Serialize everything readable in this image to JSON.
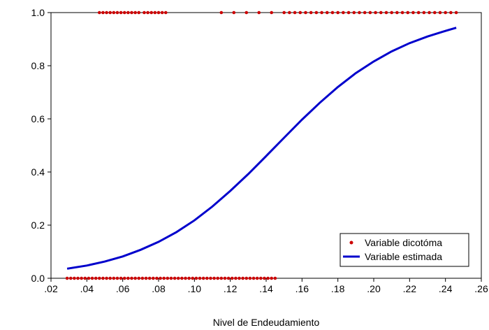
{
  "chart_data": {
    "type": "scatter",
    "title": "",
    "xlabel": "Nivel de Endeudamiento",
    "ylabel": "",
    "xlim": [
      0.02,
      0.26
    ],
    "ylim": [
      0.0,
      1.0
    ],
    "x_ticks": [
      0.02,
      0.04,
      0.06,
      0.08,
      0.1,
      0.12,
      0.14,
      0.16,
      0.18,
      0.2,
      0.22,
      0.24,
      0.26
    ],
    "x_tick_labels": [
      ".02",
      ".04",
      ".06",
      ".08",
      ".10",
      ".12",
      ".14",
      ".16",
      ".18",
      ".20",
      ".22",
      ".24",
      ".26"
    ],
    "y_ticks": [
      0.0,
      0.2,
      0.4,
      0.6,
      0.8,
      1.0
    ],
    "y_tick_labels": [
      "0.0",
      "0.2",
      "0.4",
      "0.6",
      "0.8",
      "1.0"
    ],
    "grid": false,
    "legend_position": "bottom-right",
    "colors": {
      "points": "#cc0000",
      "curve": "#0000cc"
    },
    "series": [
      {
        "name": "Variable dicotóma",
        "kind": "points",
        "ones_x": [
          0.047,
          0.049,
          0.051,
          0.053,
          0.055,
          0.057,
          0.059,
          0.061,
          0.063,
          0.065,
          0.067,
          0.069,
          0.072,
          0.074,
          0.076,
          0.078,
          0.08,
          0.082,
          0.084,
          0.115,
          0.122,
          0.129,
          0.136,
          0.143,
          0.15,
          0.153,
          0.156,
          0.159,
          0.162,
          0.165,
          0.168,
          0.171,
          0.174,
          0.177,
          0.18,
          0.183,
          0.186,
          0.189,
          0.192,
          0.195,
          0.198,
          0.201,
          0.204,
          0.207,
          0.21,
          0.213,
          0.216,
          0.219,
          0.222,
          0.225,
          0.228,
          0.231,
          0.234,
          0.237,
          0.24,
          0.243,
          0.246
        ],
        "zeros_x": [
          0.029,
          0.031,
          0.033,
          0.035,
          0.037,
          0.039,
          0.041,
          0.043,
          0.045,
          0.047,
          0.049,
          0.051,
          0.053,
          0.055,
          0.057,
          0.059,
          0.061,
          0.063,
          0.065,
          0.067,
          0.069,
          0.071,
          0.073,
          0.075,
          0.077,
          0.079,
          0.081,
          0.083,
          0.085,
          0.087,
          0.089,
          0.091,
          0.093,
          0.095,
          0.097,
          0.099,
          0.101,
          0.103,
          0.105,
          0.107,
          0.109,
          0.111,
          0.113,
          0.115,
          0.117,
          0.119,
          0.121,
          0.123,
          0.125,
          0.127,
          0.129,
          0.131,
          0.133,
          0.135,
          0.137,
          0.139,
          0.141,
          0.143,
          0.145
        ]
      },
      {
        "name": "Variable estimada",
        "kind": "line",
        "x": [
          0.029,
          0.04,
          0.05,
          0.06,
          0.07,
          0.08,
          0.09,
          0.1,
          0.11,
          0.12,
          0.13,
          0.14,
          0.15,
          0.16,
          0.17,
          0.18,
          0.19,
          0.2,
          0.21,
          0.22,
          0.23,
          0.24,
          0.246
        ],
        "y": [
          0.036,
          0.048,
          0.063,
          0.082,
          0.107,
          0.137,
          0.174,
          0.218,
          0.27,
          0.329,
          0.392,
          0.46,
          0.529,
          0.597,
          0.661,
          0.72,
          0.772,
          0.816,
          0.854,
          0.885,
          0.91,
          0.931,
          0.943
        ]
      }
    ]
  }
}
